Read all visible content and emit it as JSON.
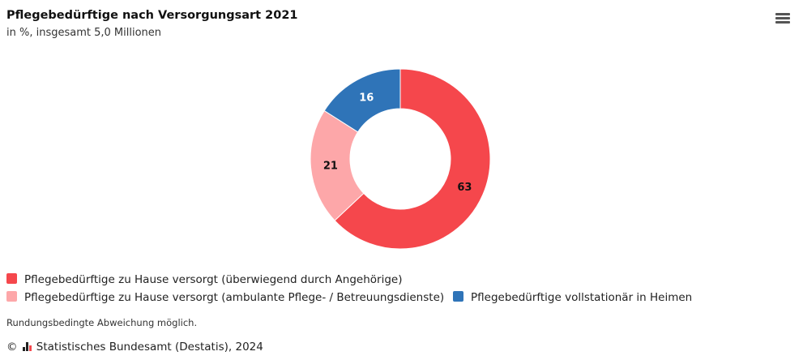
{
  "header": {
    "title": "Pflegebedürftige nach Versorgungsart 2021",
    "subtitle": "in %, insgesamt 5,0 Millionen"
  },
  "menu": {
    "icon": "hamburger-menu-icon"
  },
  "chart_data": {
    "type": "pie",
    "variant": "donut",
    "title": "Pflegebedürftige nach Versorgungsart 2021",
    "subtitle": "in %, insgesamt 5,0 Millionen",
    "categories": [
      "Pflegebedürftige zu Hause versorgt (überwiegend durch Angehörige)",
      "Pflegebedürftige zu Hause versorgt (ambulante Pflege- / Betreuungsdienste)",
      "Pflegebedürftige vollstationär in Heimen"
    ],
    "values": [
      63,
      21,
      16
    ],
    "data_labels": [
      "63",
      "21",
      "16"
    ],
    "colors": [
      "#f5474c",
      "#fda7a9",
      "#2f74b8"
    ],
    "label_colors": [
      "#111111",
      "#111111",
      "#ffffff"
    ],
    "legend_position": "bottom-left"
  },
  "legend": {
    "items": [
      {
        "label": "Pflegebedürftige zu Hause versorgt (überwiegend durch Angehörige)",
        "color": "#f5474c"
      },
      {
        "label": "Pflegebedürftige zu Hause versorgt (ambulante Pflege- / Betreuungsdienste)",
        "color": "#fda7a9"
      },
      {
        "label": "Pflegebedürftige vollstationär in Heimen",
        "color": "#2f74b8"
      }
    ]
  },
  "footnote": "Rundungsbedingte Abweichung möglich.",
  "source": {
    "copyright_symbol": "©",
    "logo_icon": "destatis-logo-icon",
    "text": "Statistisches Bundesamt (Destatis), 2024"
  }
}
